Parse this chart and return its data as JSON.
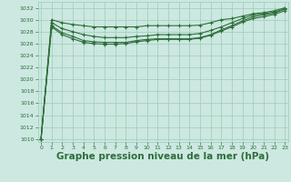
{
  "bg_color": "#cce8e0",
  "grid_color": "#99ccbb",
  "line_color": "#2d6e3a",
  "marker_color": "#2d6e3a",
  "xlabel": "Graphe pression niveau de la mer (hPa)",
  "xlabel_fontsize": 7.5,
  "ylim": [
    1009.5,
    1033
  ],
  "xlim": [
    -0.3,
    23.3
  ],
  "yticks": [
    1010,
    1012,
    1014,
    1016,
    1018,
    1020,
    1022,
    1024,
    1026,
    1028,
    1030,
    1032
  ],
  "xticks": [
    0,
    1,
    2,
    3,
    4,
    5,
    6,
    7,
    8,
    9,
    10,
    11,
    12,
    13,
    14,
    15,
    16,
    17,
    18,
    19,
    20,
    21,
    22,
    23
  ],
  "lines": [
    [
      1010.0,
      1030.0,
      1029.5,
      1029.2,
      1029.0,
      1028.8,
      1028.8,
      1028.8,
      1028.8,
      1028.8,
      1029.0,
      1029.0,
      1029.0,
      1029.0,
      1029.0,
      1029.1,
      1029.5,
      1030.0,
      1030.2,
      1030.6,
      1031.0,
      1031.2,
      1031.5,
      1032.0
    ],
    [
      1010.0,
      1029.5,
      1028.5,
      1028.0,
      1027.5,
      1027.2,
      1027.0,
      1027.0,
      1027.0,
      1027.2,
      1027.3,
      1027.5,
      1027.5,
      1027.5,
      1027.5,
      1027.7,
      1028.2,
      1028.8,
      1029.5,
      1030.2,
      1030.8,
      1031.0,
      1031.3,
      1031.8
    ],
    [
      1010.0,
      1029.0,
      1027.8,
      1027.2,
      1026.5,
      1026.3,
      1026.2,
      1026.2,
      1026.2,
      1026.5,
      1026.7,
      1026.8,
      1026.8,
      1026.8,
      1026.8,
      1027.0,
      1027.5,
      1028.3,
      1029.0,
      1029.8,
      1030.5,
      1030.8,
      1031.1,
      1031.8
    ],
    [
      1010.0,
      1028.8,
      1027.5,
      1026.8,
      1026.2,
      1026.0,
      1025.9,
      1025.9,
      1026.0,
      1026.3,
      1026.5,
      1026.7,
      1026.7,
      1026.7,
      1026.7,
      1026.9,
      1027.4,
      1028.1,
      1028.8,
      1029.6,
      1030.2,
      1030.5,
      1030.9,
      1031.5
    ]
  ],
  "marker": "+",
  "markersize": 3.5,
  "linewidth": 0.8
}
